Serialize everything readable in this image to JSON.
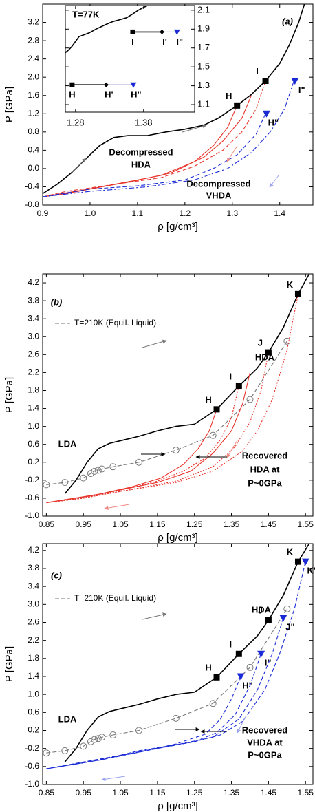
{
  "chart_data": [
    {
      "type": "line",
      "panel": "(a)",
      "xlabel": "ρ [g/cm³]",
      "ylabel": "P [GPa]",
      "xlim": [
        0.9,
        1.47
      ],
      "ylim": [
        -0.8,
        3.6
      ],
      "xticks": [
        0.9,
        {
          "value": 1,
          "label": "1.0"
        },
        1.1,
        1.2,
        1.3,
        1.4
      ],
      "yticks": [
        -0.8,
        -0.4,
        {
          "value": 0,
          "label": "0.0"
        },
        0.4,
        0.8,
        1.2,
        1.6,
        {
          "value": 2,
          "label": "2.0"
        },
        2.4,
        2.8,
        3.2
      ],
      "series": [
        {
          "color": "#000000",
          "style": "solid",
          "x": [
            0.9,
            0.93,
            0.96,
            0.99,
            1.02,
            1.05,
            1.08,
            1.12,
            1.16,
            1.2,
            1.24,
            1.27,
            1.31,
            1.34,
            1.37,
            1.4,
            1.42,
            1.44,
            1.452
          ],
          "values": [
            -0.55,
            -0.35,
            -0.1,
            0.2,
            0.5,
            0.68,
            0.72,
            0.72,
            0.8,
            0.86,
            0.95,
            1.1,
            1.38,
            1.62,
            1.92,
            2.3,
            2.7,
            3.2,
            3.6
          ]
        },
        {
          "color": "#e8332a",
          "style": "dashed",
          "x": [
            1.37,
            1.35,
            1.32,
            1.28,
            1.22,
            1.15,
            1.05,
            0.95,
            0.9
          ],
          "values": [
            1.92,
            1.3,
            0.8,
            0.4,
            0.05,
            -0.2,
            -0.35,
            -0.5,
            -0.62
          ]
        },
        {
          "color": "#e8332a",
          "style": "solid",
          "x": [
            1.31,
            1.29,
            1.26,
            1.22,
            1.15,
            1.05,
            0.95,
            0.9
          ],
          "values": [
            1.38,
            0.9,
            0.5,
            0.15,
            -0.15,
            -0.35,
            -0.55,
            -0.62
          ]
        },
        {
          "color": "#e8332a",
          "style": "solid",
          "x": [
            1.34,
            1.32,
            1.28,
            1.24,
            1.17,
            1.08,
            0.98,
            0.9
          ],
          "values": [
            1.6,
            1.1,
            0.6,
            0.25,
            -0.1,
            -0.3,
            -0.48,
            -0.62
          ]
        },
        {
          "color": "#1a2bd6",
          "style": "dashed",
          "x": [
            1.37,
            1.35,
            1.31,
            1.26,
            1.2,
            1.1,
            1.0,
            0.9
          ],
          "values": [
            1.2,
            0.75,
            0.3,
            0.0,
            -0.25,
            -0.38,
            -0.45,
            -0.62
          ]
        },
        {
          "color": "#1a2bd6",
          "style": "dashdot",
          "x": [
            1.43,
            1.41,
            1.38,
            1.34,
            1.29,
            1.22,
            1.12,
            1.0,
            0.9
          ],
          "values": [
            1.92,
            1.3,
            0.8,
            0.35,
            0.0,
            -0.25,
            -0.4,
            -0.5,
            -0.62
          ]
        }
      ],
      "points": [
        {
          "label": "H",
          "x": 1.31,
          "y": 1.38,
          "shape": "square",
          "color": "#000000"
        },
        {
          "label": "I",
          "x": 1.37,
          "y": 1.92,
          "shape": "square",
          "color": "#000000"
        },
        {
          "label": "H\"",
          "x": 1.372,
          "y": 1.2,
          "shape": "triangle",
          "color": "#1a2bd6"
        },
        {
          "label": "I\"",
          "x": 1.432,
          "y": 1.92,
          "shape": "triangle",
          "color": "#1a2bd6"
        }
      ],
      "annotations": [
        {
          "text": "Decompressed",
          "color": "#000000"
        },
        {
          "text": "HDA",
          "color": "#000000"
        },
        {
          "text": "Decompressed",
          "color": "#000000"
        },
        {
          "text": "VHDA",
          "color": "#000000"
        }
      ],
      "inset": {
        "title": "T=77K",
        "xlim": [
          1.265,
          1.455
        ],
        "ylim": [
          1.02,
          2.15
        ],
        "xticks": [
          1.28,
          1.38
        ],
        "yticks": [
          1.1,
          1.3,
          1.5,
          1.7,
          1.9,
          2.1
        ],
        "series": [
          {
            "color": "#000000",
            "style": "solid",
            "x": [
              1.265,
              1.27,
              1.275,
              1.285,
              1.3,
              1.31,
              1.325,
              1.335,
              1.345,
              1.355,
              1.364,
              1.372,
              1.38,
              1.386
            ],
            "values": [
              1.65,
              1.68,
              1.72,
              1.82,
              1.86,
              1.9,
              1.95,
              1.98,
              2.0,
              2.02,
              2.06,
              2.1,
              2.13,
              2.15
            ]
          },
          {
            "color": "#000000",
            "style": "solid",
            "x": [
              1.275,
              1.325
            ],
            "values": [
              1.31,
              1.31
            ]
          },
          {
            "color": "#8888cc",
            "style": "solid",
            "x": [
              1.325,
              1.365
            ],
            "values": [
              1.31,
              1.31
            ]
          },
          {
            "color": "#000000",
            "style": "solid",
            "x": [
              1.364,
              1.407
            ],
            "values": [
              1.87,
              1.87
            ]
          },
          {
            "color": "#8888cc",
            "style": "solid",
            "x": [
              1.407,
              1.429
            ],
            "values": [
              1.87,
              1.87
            ]
          }
        ],
        "points": [
          {
            "label": "H",
            "x": 1.275,
            "y": 1.31,
            "shape": "square",
            "color": "#000000"
          },
          {
            "label": "H'",
            "x": 1.325,
            "y": 1.31,
            "shape": "diamond",
            "color": "#000000"
          },
          {
            "label": "H\"",
            "x": 1.365,
            "y": 1.31,
            "shape": "triangle",
            "color": "#1a2bd6"
          },
          {
            "label": "I",
            "x": 1.364,
            "y": 1.87,
            "shape": "square",
            "color": "#000000"
          },
          {
            "label": "I'",
            "x": 1.407,
            "y": 1.87,
            "shape": "diamond",
            "color": "#000000"
          },
          {
            "label": "I\"",
            "x": 1.429,
            "y": 1.87,
            "shape": "triangle",
            "color": "#1a2bd6"
          }
        ]
      }
    },
    {
      "type": "line",
      "panel": "(b)",
      "xlabel": "ρ [g/cm³]",
      "ylabel": "P [GPa]",
      "xlim": [
        0.84,
        1.57
      ],
      "ylim": [
        -1.0,
        4.4
      ],
      "xticks": [
        0.85,
        0.95,
        1.05,
        1.15,
        1.25,
        1.35,
        1.45,
        1.55
      ],
      "yticks": [
        {
          "value": -1,
          "label": "-1.0"
        },
        -0.6,
        -0.2,
        0.2,
        0.6,
        {
          "value": 1,
          "label": "1.0"
        },
        1.4,
        1.8,
        2.2,
        2.6,
        {
          "value": 3,
          "label": "3.0"
        },
        3.4,
        3.8,
        4.2
      ],
      "legend": "upper left",
      "series": [
        {
          "color": "#000000",
          "style": "solid",
          "x": [
            0.9,
            0.93,
            0.96,
            0.99,
            1.02,
            1.06,
            1.1,
            1.15,
            1.2,
            1.25,
            1.31,
            1.37,
            1.42,
            1.45,
            1.49,
            1.53,
            1.56
          ],
          "values": [
            -0.5,
            -0.2,
            0.2,
            0.5,
            0.62,
            0.7,
            0.78,
            0.9,
            1.0,
            1.05,
            1.38,
            1.9,
            2.3,
            2.65,
            3.2,
            3.95,
            4.4
          ]
        },
        {
          "name": "T=210K (Equil. Liquid)",
          "color": "#777777",
          "style": "dashed",
          "marker": "circle",
          "x": [
            0.85,
            0.9,
            0.95,
            0.97,
            0.98,
            0.99,
            1.0,
            1.03,
            1.1,
            1.2,
            1.3,
            1.4,
            1.5
          ],
          "values": [
            -0.3,
            -0.25,
            -0.15,
            -0.05,
            0.0,
            0.02,
            0.05,
            0.1,
            0.2,
            0.47,
            0.8,
            1.6,
            2.9
          ]
        },
        {
          "color": "#e8332a",
          "style": "dotted",
          "x": [
            1.53,
            1.5,
            1.46,
            1.42,
            1.38,
            1.3,
            1.2,
            1.05,
            0.95,
            0.85
          ],
          "values": [
            3.95,
            2.7,
            1.6,
            0.9,
            0.45,
            0.0,
            -0.25,
            -0.45,
            -0.6,
            -0.7
          ]
        },
        {
          "color": "#e8332a",
          "style": "dotted",
          "x": [
            1.45,
            1.43,
            1.4,
            1.36,
            1.3,
            1.2,
            1.05,
            0.95,
            0.85
          ],
          "values": [
            2.65,
            1.8,
            1.1,
            0.55,
            0.1,
            -0.22,
            -0.45,
            -0.6,
            -0.7
          ]
        },
        {
          "color": "#e8332a",
          "style": "dotted",
          "x": [
            1.37,
            1.35,
            1.32,
            1.28,
            1.22,
            1.15,
            1.05,
            0.95,
            0.85
          ],
          "values": [
            1.9,
            1.2,
            0.7,
            0.3,
            0.0,
            -0.22,
            -0.42,
            -0.6,
            -0.7
          ]
        },
        {
          "color": "#e8332a",
          "style": "solid",
          "x": [
            1.31,
            1.29,
            1.26,
            1.22,
            1.16,
            1.08,
            0.97,
            0.85
          ],
          "values": [
            1.38,
            0.9,
            0.5,
            0.15,
            -0.15,
            -0.35,
            -0.55,
            -0.7
          ]
        },
        {
          "color": "#e8332a",
          "style": "solid",
          "x": [
            1.4,
            1.38,
            1.35,
            1.3,
            1.24,
            1.15,
            1.0,
            0.85
          ],
          "values": [
            2.2,
            1.5,
            0.9,
            0.4,
            0.0,
            -0.25,
            -0.5,
            -0.7
          ]
        }
      ],
      "points": [
        {
          "label": "H",
          "x": 1.31,
          "y": 1.38,
          "shape": "square",
          "color": "#000000"
        },
        {
          "label": "I",
          "x": 1.37,
          "y": 1.9,
          "shape": "square",
          "color": "#000000"
        },
        {
          "label": "J",
          "x": 1.45,
          "y": 2.65,
          "shape": "square",
          "color": "#000000"
        },
        {
          "label": "K",
          "x": 1.53,
          "y": 3.95,
          "shape": "square",
          "color": "#000000"
        }
      ],
      "annotations": [
        {
          "text": "HDA",
          "color": "#000000"
        },
        {
          "text": "LDA",
          "color": "#000000"
        },
        {
          "text": "Recovered",
          "color": "#000000"
        },
        {
          "text": "HDA at",
          "color": "#000000"
        },
        {
          "text": "P~0GPa",
          "color": "#000000"
        }
      ]
    },
    {
      "type": "line",
      "panel": "(c)",
      "xlabel": "ρ [g/cm³]",
      "ylabel": "P [GPa]",
      "xlim": [
        0.84,
        1.57
      ],
      "ylim": [
        -1.0,
        4.35
      ],
      "xticks": [
        0.85,
        0.95,
        1.05,
        1.15,
        1.25,
        1.35,
        1.45,
        1.55
      ],
      "yticks": [
        {
          "value": -1,
          "label": "-1.0"
        },
        -0.6,
        -0.2,
        0.2,
        0.6,
        {
          "value": 1,
          "label": "1.0"
        },
        1.4,
        1.8,
        2.2,
        2.6,
        {
          "value": 3,
          "label": "3.0"
        },
        3.4,
        3.8,
        4.2
      ],
      "legend": "upper left",
      "series": [
        {
          "color": "#000000",
          "style": "solid",
          "x": [
            0.9,
            0.93,
            0.96,
            0.99,
            1.02,
            1.06,
            1.1,
            1.15,
            1.2,
            1.25,
            1.31,
            1.37,
            1.42,
            1.45,
            1.49,
            1.53,
            1.56
          ],
          "values": [
            -0.5,
            -0.2,
            0.2,
            0.5,
            0.62,
            0.7,
            0.78,
            0.9,
            1.0,
            1.05,
            1.38,
            1.9,
            2.3,
            2.65,
            3.2,
            3.95,
            4.35
          ]
        },
        {
          "name": "T=210K (Equil. Liquid)",
          "color": "#777777",
          "style": "dashed",
          "marker": "circle",
          "x": [
            0.85,
            0.9,
            0.95,
            0.97,
            0.98,
            0.99,
            1.0,
            1.03,
            1.1,
            1.2,
            1.3,
            1.4,
            1.5
          ],
          "values": [
            -0.3,
            -0.25,
            -0.15,
            -0.05,
            0.0,
            0.02,
            0.05,
            0.1,
            0.2,
            0.47,
            0.8,
            1.6,
            2.9
          ]
        },
        {
          "color": "#1a2bd6",
          "style": "dashed",
          "x": [
            1.55,
            1.52,
            1.48,
            1.44,
            1.38,
            1.32,
            1.25,
            1.1,
            1.0,
            0.85
          ],
          "values": [
            3.95,
            2.9,
            1.9,
            1.1,
            0.4,
            0.1,
            -0.05,
            -0.25,
            -0.45,
            -0.65
          ]
        },
        {
          "color": "#1a2bd6",
          "style": "dashed",
          "x": [
            1.49,
            1.46,
            1.42,
            1.37,
            1.3,
            1.2,
            1.05,
            0.85
          ],
          "values": [
            2.7,
            1.9,
            1.1,
            0.45,
            0.05,
            -0.12,
            -0.35,
            -0.65
          ]
        },
        {
          "color": "#1a2bd6",
          "style": "dashed",
          "x": [
            1.43,
            1.4,
            1.36,
            1.31,
            1.25,
            1.15,
            1.0,
            0.85
          ],
          "values": [
            1.9,
            1.2,
            0.55,
            0.15,
            -0.05,
            -0.2,
            -0.45,
            -0.65
          ]
        },
        {
          "color": "#1a2bd6",
          "style": "dashed",
          "x": [
            1.375,
            1.35,
            1.32,
            1.28,
            1.2,
            1.1,
            0.95,
            0.85
          ],
          "values": [
            1.4,
            0.9,
            0.45,
            0.12,
            -0.1,
            -0.28,
            -0.52,
            -0.65
          ]
        }
      ],
      "points": [
        {
          "label": "H",
          "x": 1.31,
          "y": 1.38,
          "shape": "square",
          "color": "#000000"
        },
        {
          "label": "I",
          "x": 1.37,
          "y": 1.9,
          "shape": "square",
          "color": "#000000"
        },
        {
          "label": "J",
          "x": 1.45,
          "y": 2.65,
          "shape": "square",
          "color": "#000000"
        },
        {
          "label": "K",
          "x": 1.53,
          "y": 3.95,
          "shape": "square",
          "color": "#000000"
        },
        {
          "label": "H\"",
          "x": 1.375,
          "y": 1.4,
          "shape": "triangle",
          "color": "#1a2bd6"
        },
        {
          "label": "I\"",
          "x": 1.43,
          "y": 1.9,
          "shape": "triangle",
          "color": "#1a2bd6"
        },
        {
          "label": "J\"",
          "x": 1.49,
          "y": 2.7,
          "shape": "triangle",
          "color": "#1a2bd6"
        },
        {
          "label": "K\"",
          "x": 1.55,
          "y": 3.95,
          "shape": "triangle",
          "color": "#1a2bd6"
        }
      ],
      "annotations": [
        {
          "text": "HDA",
          "color": "#000000"
        },
        {
          "text": "LDA",
          "color": "#000000"
        },
        {
          "text": "Recovered",
          "color": "#000000"
        },
        {
          "text": "VHDA at",
          "color": "#000000"
        },
        {
          "text": "P~0GPa",
          "color": "#000000"
        }
      ]
    }
  ]
}
